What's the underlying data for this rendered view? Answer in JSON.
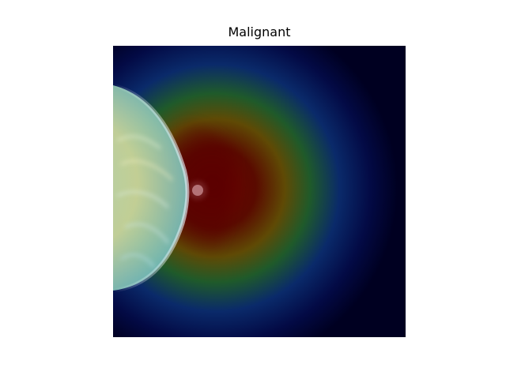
{
  "figure": {
    "title": "Malignant"
  },
  "image": {
    "description_colors": {
      "background": "#000021",
      "heat_hot": "#5a0000",
      "heat_warm": "#6e3a00",
      "heat_mid": "#1f6a2a",
      "heat_cool": "#0a1f6e",
      "tissue_cyan": "#5fb7c2"
    }
  }
}
